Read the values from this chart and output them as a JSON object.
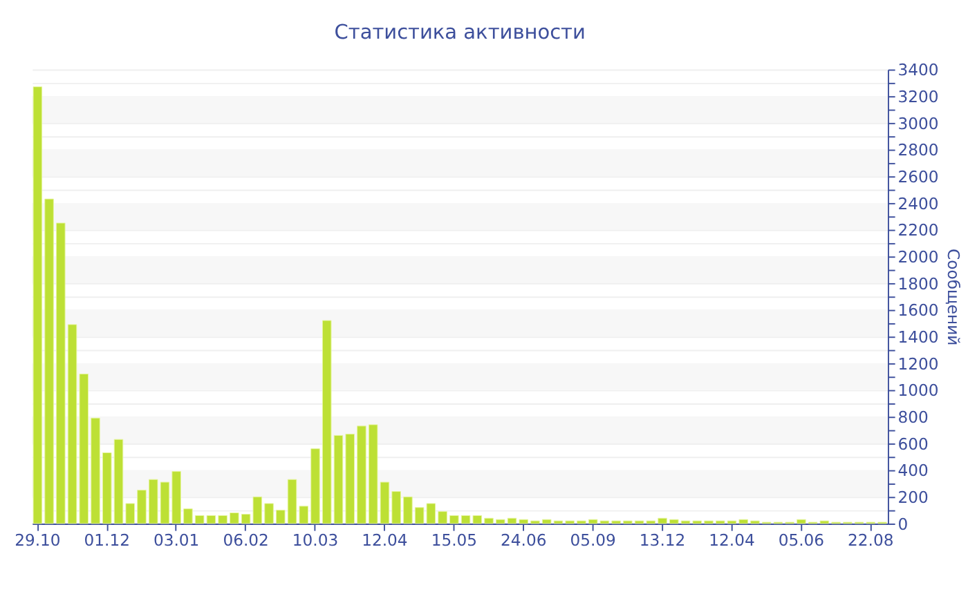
{
  "chart_data": {
    "type": "bar",
    "title": "Статистика активности",
    "ylabel": "Сообщений",
    "categories": [
      "29.10",
      null,
      null,
      null,
      null,
      null,
      "01.12",
      null,
      null,
      null,
      null,
      null,
      "03.01",
      null,
      null,
      null,
      null,
      null,
      "06.02",
      null,
      null,
      null,
      null,
      null,
      "10.03",
      null,
      null,
      null,
      null,
      null,
      "12.04",
      null,
      null,
      null,
      null,
      null,
      "15.05",
      null,
      null,
      null,
      null,
      null,
      "24.06",
      null,
      null,
      null,
      null,
      null,
      "05.09",
      null,
      null,
      null,
      null,
      null,
      "13.12",
      null,
      null,
      null,
      null,
      null,
      "12.04",
      null,
      null,
      null,
      null,
      null,
      "05.06",
      null,
      null,
      null,
      null,
      null,
      "22.08",
      null
    ],
    "values": [
      3270,
      2430,
      2250,
      1490,
      1120,
      790,
      530,
      630,
      150,
      250,
      330,
      310,
      390,
      110,
      60,
      60,
      60,
      80,
      70,
      200,
      150,
      100,
      330,
      130,
      560,
      1520,
      660,
      670,
      730,
      740,
      310,
      240,
      200,
      120,
      150,
      90,
      60,
      60,
      60,
      40,
      30,
      40,
      30,
      20,
      30,
      20,
      20,
      20,
      30,
      20,
      20,
      20,
      20,
      20,
      40,
      30,
      20,
      20,
      20,
      20,
      20,
      30,
      20,
      10,
      10,
      10,
      30,
      10,
      20,
      10,
      10,
      10,
      10,
      10
    ],
    "color": "#bde035",
    "ylim": [
      0,
      3400
    ],
    "yticks": [
      0,
      {
        "value": 100,
        "label": null
      },
      200,
      {
        "value": 300,
        "label": null
      },
      400,
      {
        "value": 500,
        "label": null
      },
      600,
      {
        "value": 700,
        "label": null
      },
      800,
      {
        "value": 900,
        "label": null
      },
      1000,
      {
        "value": 1100,
        "label": null
      },
      1200,
      {
        "value": 1300,
        "label": null
      },
      1400,
      {
        "value": 1500,
        "label": null
      },
      1600,
      {
        "value": 1700,
        "label": null
      },
      1800,
      {
        "value": 1900,
        "label": null
      },
      2000,
      {
        "value": 2100,
        "label": null
      },
      2200,
      {
        "value": 2300,
        "label": null
      },
      2400,
      {
        "value": 2500,
        "label": null
      },
      2600,
      {
        "value": 2700,
        "label": null
      },
      2800,
      {
        "value": 2900,
        "label": null
      },
      3000,
      {
        "value": 3100,
        "label": null
      },
      3200,
      {
        "value": 3300,
        "label": null
      },
      3400
    ],
    "grid": "y"
  }
}
